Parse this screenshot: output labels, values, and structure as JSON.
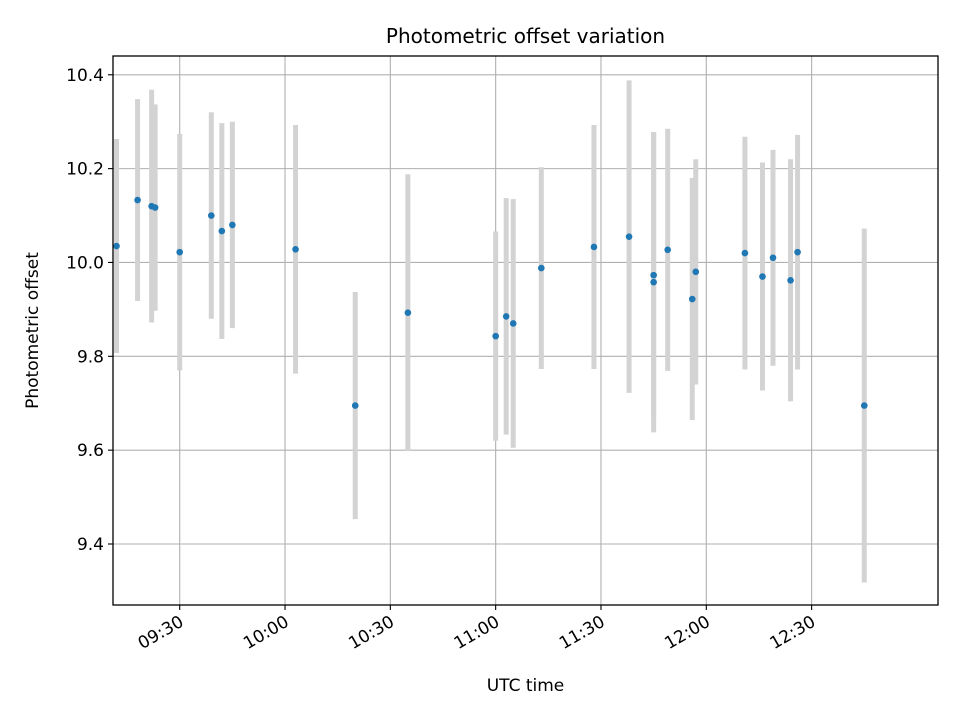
{
  "chart_data": {
    "type": "scatter",
    "title": "Photometric offset variation",
    "xlabel": "UTC time",
    "ylabel": "Photometric offset",
    "xlim": [
      "09:11",
      "13:06"
    ],
    "ylim": [
      9.27,
      10.44
    ],
    "x_ticks": [
      "09:30",
      "10:00",
      "10:30",
      "11:00",
      "11:30",
      "12:00",
      "12:30"
    ],
    "y_ticks": [
      9.4,
      9.6,
      9.8,
      10.0,
      10.2,
      10.4
    ],
    "grid": true,
    "colors": {
      "point": "#1f77b4",
      "errorbar": "#d3d3d3",
      "grid": "#b0b0b0"
    },
    "points": [
      {
        "x": "09:12",
        "y": 10.035,
        "err": 0.228
      },
      {
        "x": "09:18",
        "y": 10.133,
        "err": 0.215
      },
      {
        "x": "09:22",
        "y": 10.12,
        "err": 0.248
      },
      {
        "x": "09:23",
        "y": 10.117,
        "err": 0.22
      },
      {
        "x": "09:30",
        "y": 10.022,
        "err": 0.252
      },
      {
        "x": "09:39",
        "y": 10.1,
        "err": 0.22
      },
      {
        "x": "09:42",
        "y": 10.067,
        "err": 0.23
      },
      {
        "x": "09:45",
        "y": 10.08,
        "err": 0.22
      },
      {
        "x": "10:03",
        "y": 10.028,
        "err": 0.265
      },
      {
        "x": "10:20",
        "y": 9.695,
        "err": 0.242
      },
      {
        "x": "10:35",
        "y": 9.893,
        "err": 0.295
      },
      {
        "x": "11:00",
        "y": 9.843,
        "err": 0.223
      },
      {
        "x": "11:03",
        "y": 9.885,
        "err": 0.252
      },
      {
        "x": "11:05",
        "y": 9.87,
        "err": 0.265
      },
      {
        "x": "11:13",
        "y": 9.988,
        "err": 0.215
      },
      {
        "x": "11:28",
        "y": 10.033,
        "err": 0.26
      },
      {
        "x": "11:38",
        "y": 10.055,
        "err": 0.333
      },
      {
        "x": "11:45",
        "y": 9.958,
        "err": 0.32
      },
      {
        "x": "11:45",
        "y": 9.973,
        "err": 0.305
      },
      {
        "x": "11:49",
        "y": 10.027,
        "err": 0.258
      },
      {
        "x": "11:56",
        "y": 9.922,
        "err": 0.258
      },
      {
        "x": "11:57",
        "y": 9.98,
        "err": 0.24
      },
      {
        "x": "12:11",
        "y": 10.02,
        "err": 0.248
      },
      {
        "x": "12:16",
        "y": 9.97,
        "err": 0.243
      },
      {
        "x": "12:19",
        "y": 10.01,
        "err": 0.23
      },
      {
        "x": "12:24",
        "y": 9.962,
        "err": 0.258
      },
      {
        "x": "12:26",
        "y": 10.022,
        "err": 0.25
      },
      {
        "x": "12:45",
        "y": 9.695,
        "err": 0.377
      }
    ]
  }
}
